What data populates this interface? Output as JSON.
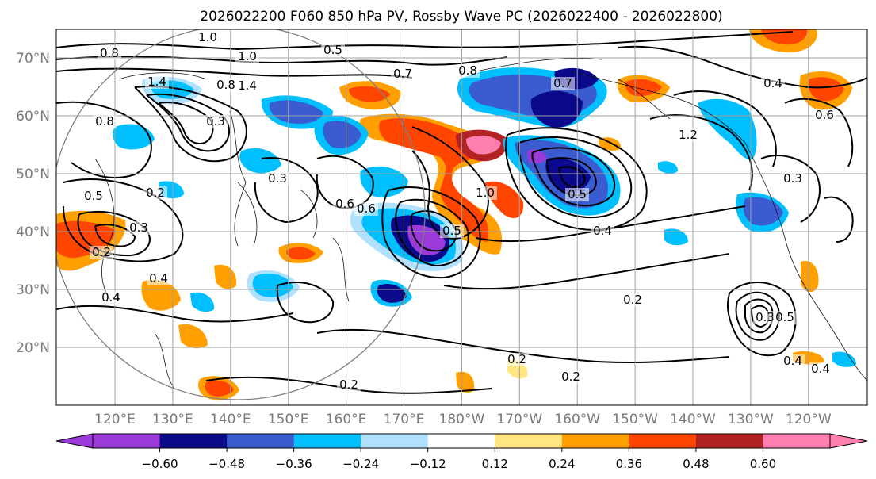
{
  "title": "2026022200 F060 850 hPa PV, Rossby Wave PC (2026022400 - 2026022800)",
  "lat_labels": [
    "70°N",
    "60°N",
    "50°N",
    "40°N",
    "30°N",
    "20°N"
  ],
  "lon_labels": [
    "120°E",
    "130°E",
    "140°E",
    "150°E",
    "160°E",
    "170°E",
    "180°W",
    "170°W",
    "160°W",
    "150°W",
    "140°W",
    "130°W",
    "120°W"
  ],
  "colorbar": {
    "ticks": [
      "−0.60",
      "−0.48",
      "−0.36",
      "−0.24",
      "−0.12",
      "0.12",
      "0.24",
      "0.36",
      "0.48",
      "0.60"
    ],
    "colors": [
      "#9a3ad8",
      "#0a0a8a",
      "#3a5cd0",
      "#00bfff",
      "#b0e2ff",
      "#ffffff",
      "#ffe680",
      "#ffa000",
      "#ff4500",
      "#b22222",
      "#ff80b0"
    ]
  },
  "contour_labels": [
    "1.0",
    "0.8",
    "0.5",
    "1.0",
    "1.4",
    "0.8",
    "0.7",
    "0.8",
    "1.4",
    "0.3",
    "0.8",
    "0.5",
    "0.2",
    "0.3",
    "0.2",
    "0.6",
    "0.4",
    "0.4",
    "0.3",
    "1.0",
    "0.5",
    "0.7",
    "1.2",
    "0.6",
    "0.4",
    "0.5",
    "0.4",
    "0.3",
    "0.2",
    "0.2",
    "0.2",
    "0.2",
    "0.6",
    "0.3",
    "0.5",
    "0.4",
    "0.4"
  ]
}
